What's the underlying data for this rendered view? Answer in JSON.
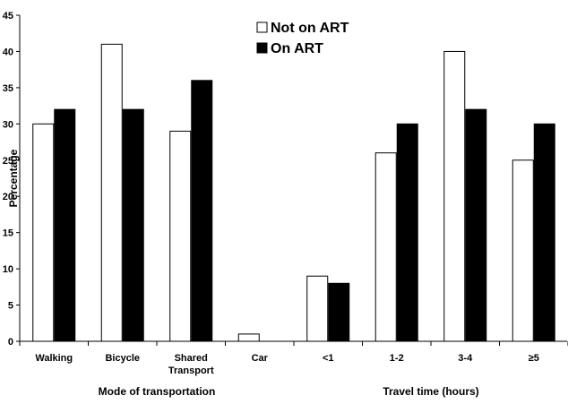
{
  "chart_data": {
    "type": "bar",
    "title": "",
    "ylabel": "Percentage",
    "ylim": [
      0,
      45
    ],
    "yticks": [
      0,
      5,
      10,
      15,
      20,
      25,
      30,
      35,
      40,
      45
    ],
    "grid": false,
    "legend_position": "top-center",
    "categories": [
      "Walking",
      "Bicycle",
      "Shared Transport",
      "Car",
      "<1",
      "1-2",
      "3-4",
      "≥5"
    ],
    "category_label_lines": [
      [
        "Walking"
      ],
      [
        "Bicycle"
      ],
      [
        "Shared",
        "Transport"
      ],
      [
        "Car"
      ],
      [
        "<1"
      ],
      [
        "1-2"
      ],
      [
        "3-4"
      ],
      [
        "≥5"
      ]
    ],
    "groups": [
      {
        "label": "Mode of transportation",
        "categories": [
          "Walking",
          "Bicycle",
          "Shared Transport",
          "Car"
        ]
      },
      {
        "label": "Travel time (hours)",
        "categories": [
          "<1",
          "1-2",
          "3-4",
          "≥5"
        ]
      }
    ],
    "series": [
      {
        "name": "Not on ART",
        "color": "#ffffff",
        "values": [
          30,
          41,
          29,
          1,
          9,
          26,
          40,
          25
        ]
      },
      {
        "name": "On ART",
        "color": "#000000",
        "values": [
          32,
          32,
          36,
          0,
          8,
          30,
          32,
          30
        ]
      }
    ]
  }
}
